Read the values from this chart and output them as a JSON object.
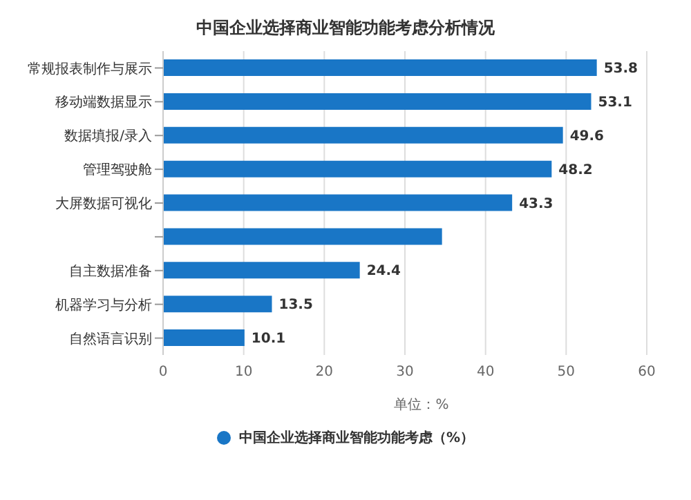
{
  "chart_data": {
    "type": "bar",
    "orientation": "horizontal",
    "title": "中国企业选择商业智能功能考虑分析情况",
    "xlabel": "单位：%",
    "categories": [
      "常规报表制作与展示",
      "移动端数据显示",
      "数据填报/录入",
      "管理驾驶舱",
      "大屏数据可视化",
      null,
      "自主数据准备",
      "机器学习与分析",
      "自然语言识别"
    ],
    "series": [
      {
        "name": "中国企业选择商业智能功能考虑（%）",
        "color": "#1976c6",
        "values": [
          53.8,
          53.1,
          49.6,
          48.2,
          43.3,
          34.6,
          24.4,
          13.5,
          10.1
        ],
        "value_labels": [
          "53.8",
          "53.1",
          "49.6",
          "48.2",
          "43.3",
          null,
          "24.4",
          "13.5",
          "10.1"
        ]
      }
    ],
    "xlim": [
      0,
      60
    ],
    "xticks": [
      0,
      10,
      20,
      30,
      40,
      50,
      60
    ],
    "grid": "x",
    "legend": "bottom"
  }
}
